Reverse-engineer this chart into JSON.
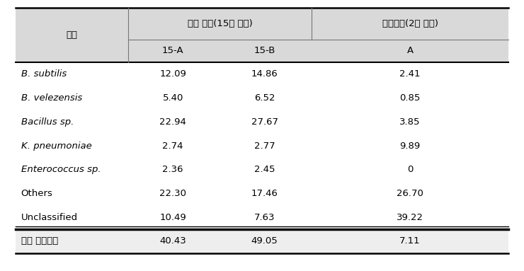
{
  "header_row1_col0": "구분",
  "header_row1_col1": "한식 된장(15종 혼합)",
  "header_row1_col2": "개량된장(2종 혼합)",
  "header_row2": [
    "15-A",
    "15-B",
    "A"
  ],
  "rows": [
    [
      "B. subtilis",
      "12.09",
      "14.86",
      "2.41"
    ],
    [
      "B. velezensis",
      "5.40",
      "6.52",
      "0.85"
    ],
    [
      "Bacillus sp.",
      "22.94",
      "27.67",
      "3.85"
    ],
    [
      "K. pneumoniae",
      "2.74",
      "2.77",
      "9.89"
    ],
    [
      "Enterococcus sp.",
      "2.36",
      "2.45",
      "0"
    ],
    [
      "Others",
      "22.30",
      "17.46",
      "26.70"
    ],
    [
      "Unclassified",
      "10.49",
      "7.63",
      "39.22"
    ]
  ],
  "footer_row": [
    "우점 바실러스",
    "40.43",
    "49.05",
    "7.11"
  ],
  "italic_rows": [
    0,
    1,
    2,
    3,
    4
  ],
  "header_bg": "#d9d9d9",
  "footer_bg": "#eeeeee",
  "line_color": "#555555",
  "thick_line_color": "#000000",
  "figsize": [
    7.4,
    3.83
  ],
  "dpi": 100,
  "fontsize": 9.5,
  "header_fontsize": 9.5
}
